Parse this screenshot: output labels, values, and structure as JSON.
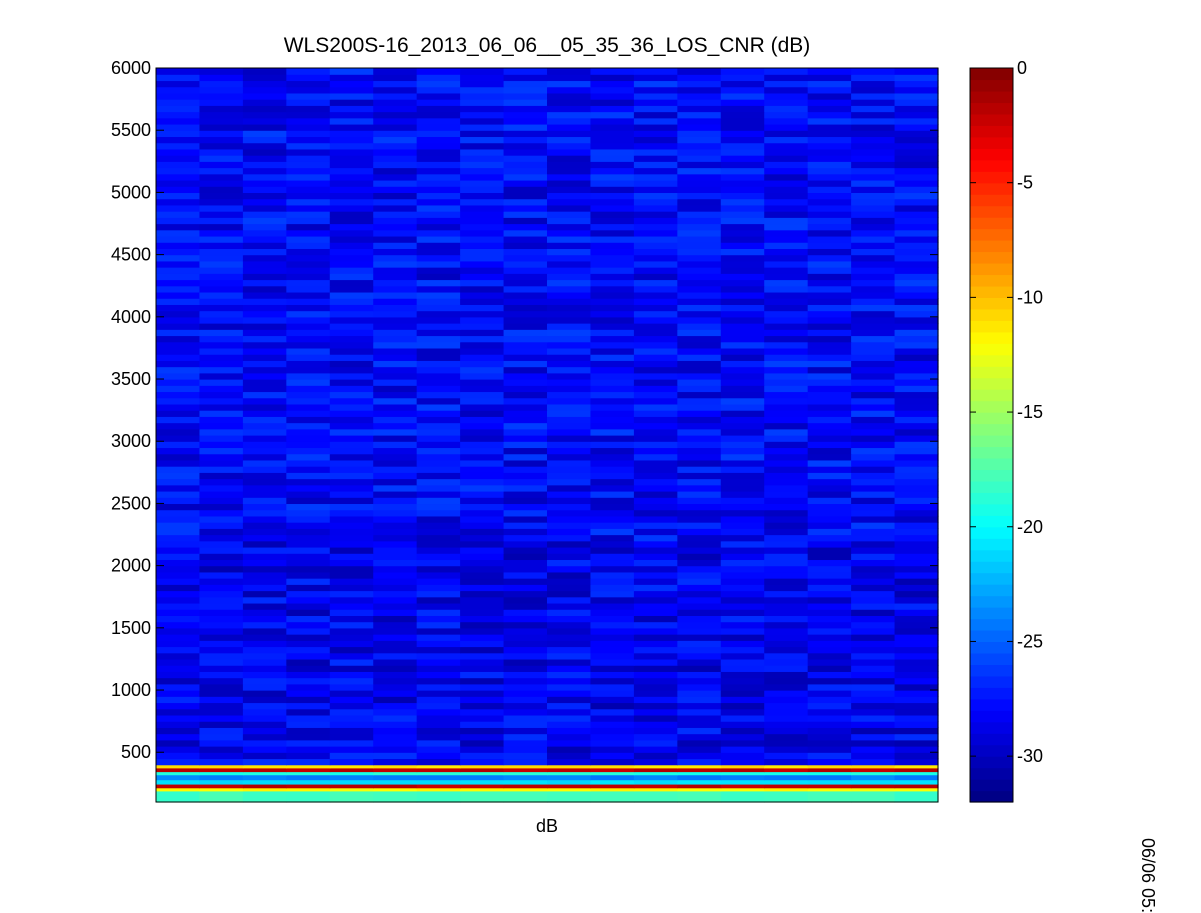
{
  "chart_data": {
    "type": "heatmap",
    "title": "WLS200S-16_2013_06_06__05_35_36_LOS_CNR (dB)",
    "xlabel": "dB",
    "ylabel": "",
    "ylim": [
      100,
      6000
    ],
    "yticks": [
      500,
      1000,
      1500,
      2000,
      2500,
      3000,
      3500,
      4000,
      4500,
      5000,
      5500,
      6000
    ],
    "colorbar": {
      "range": [
        -32,
        0
      ],
      "ticks": [
        0,
        -5,
        -10,
        -15,
        -20,
        -25,
        -30
      ],
      "colormap": "jet"
    },
    "columns": 18,
    "layers": [
      {
        "y_from": 100,
        "y_to": 190,
        "value": -18
      },
      {
        "y_from": 190,
        "y_to": 215,
        "value": -12
      },
      {
        "y_from": 215,
        "y_to": 245,
        "value": -2
      },
      {
        "y_from": 245,
        "y_to": 280,
        "value": -21
      },
      {
        "y_from": 280,
        "y_to": 320,
        "value": -24
      },
      {
        "y_from": 320,
        "y_to": 345,
        "value": -19
      },
      {
        "y_from": 345,
        "y_to": 375,
        "value": -2
      },
      {
        "y_from": 375,
        "y_to": 400,
        "value": -11
      },
      {
        "y_from": 400,
        "y_to": 2200,
        "value": -28.5
      },
      {
        "y_from": 2200,
        "y_to": 6000,
        "value": -28
      }
    ]
  },
  "side_label": "06/06 05:"
}
